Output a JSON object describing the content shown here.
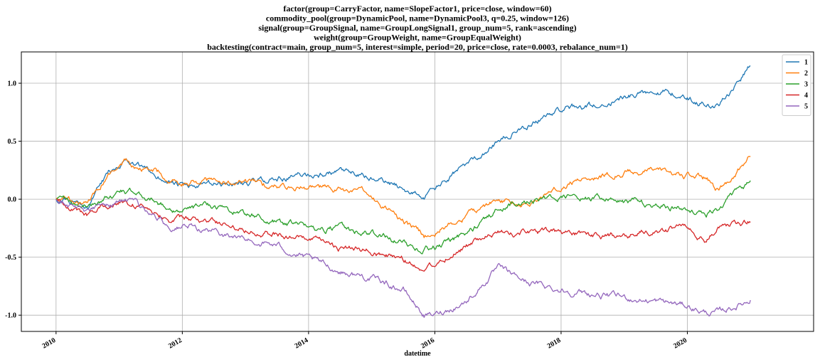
{
  "chart_data": {
    "type": "line",
    "title_lines": [
      "factor(group=CarryFactor, name=SlopeFactor1, price=close, window=60)",
      "commodity_pool(group=DynamicPool, name=DynamicPool3, q=0.25, window=126)",
      "signal(group=GroupSignal, name=GroupLongSignal1, group_num=5, rank=ascending)",
      "weight(group=GroupWeight, name=GroupEqualWeight)",
      "backtesting(contract=main, group_num=5, interest=simple, period=20, price=close, rate=0.0003, rebalance_num=1)"
    ],
    "xlabel": "datetime",
    "ylabel": "",
    "xlim": [
      2009.45,
      2022.0
    ],
    "ylim": [
      -1.14,
      1.27
    ],
    "x_ticks": [
      2010,
      2012,
      2014,
      2016,
      2018,
      2020
    ],
    "x_tick_labels": [
      "2010",
      "2012",
      "2014",
      "2016",
      "2018",
      "2020"
    ],
    "y_ticks": [
      -1.0,
      -0.5,
      0.0,
      0.5,
      1.0
    ],
    "y_tick_labels": [
      "-1.0",
      "-0.5",
      "0.0",
      "0.5",
      "1.0"
    ],
    "grid": true,
    "legend_position": "top-right",
    "x": [
      2010.0,
      2010.5,
      2010.83,
      2011.08,
      2011.5,
      2011.83,
      2012.0,
      2012.5,
      2013.0,
      2013.5,
      2014.0,
      2014.5,
      2015.0,
      2015.5,
      2015.83,
      2016.0,
      2016.5,
      2017.0,
      2017.5,
      2018.0,
      2018.5,
      2019.0,
      2019.5,
      2020.0,
      2020.3,
      2020.5,
      2021.0
    ],
    "series": [
      {
        "name": "1",
        "color": "#1f77b4",
        "values": [
          0.0,
          -0.05,
          0.22,
          0.35,
          0.22,
          0.15,
          0.1,
          0.12,
          0.14,
          0.18,
          0.21,
          0.23,
          0.18,
          0.1,
          0.02,
          0.08,
          0.3,
          0.5,
          0.65,
          0.78,
          0.8,
          0.88,
          0.95,
          0.88,
          0.82,
          0.8,
          1.15
        ]
      },
      {
        "name": "2",
        "color": "#ff7f0e",
        "values": [
          0.0,
          -0.03,
          0.2,
          0.3,
          0.25,
          0.18,
          0.15,
          0.16,
          0.13,
          0.12,
          0.1,
          0.08,
          0.03,
          -0.2,
          -0.32,
          -0.28,
          -0.15,
          0.0,
          -0.05,
          0.12,
          0.2,
          0.23,
          0.25,
          0.2,
          0.18,
          0.08,
          0.37
        ]
      },
      {
        "name": "3",
        "color": "#2ca02c",
        "values": [
          0.0,
          -0.06,
          0.02,
          0.08,
          0.0,
          -0.08,
          -0.1,
          -0.05,
          -0.12,
          -0.2,
          -0.25,
          -0.25,
          -0.3,
          -0.38,
          -0.43,
          -0.42,
          -0.3,
          -0.08,
          0.0,
          0.02,
          0.0,
          -0.02,
          -0.05,
          -0.08,
          -0.12,
          -0.08,
          0.16
        ]
      },
      {
        "name": "4",
        "color": "#d62728",
        "values": [
          0.0,
          -0.15,
          -0.05,
          -0.02,
          -0.08,
          -0.18,
          -0.18,
          -0.2,
          -0.25,
          -0.3,
          -0.35,
          -0.42,
          -0.45,
          -0.52,
          -0.6,
          -0.55,
          -0.4,
          -0.3,
          -0.28,
          -0.3,
          -0.32,
          -0.3,
          -0.28,
          -0.22,
          -0.35,
          -0.25,
          -0.2
        ]
      },
      {
        "name": "5",
        "color": "#9467bd",
        "values": [
          0.0,
          -0.1,
          -0.05,
          0.0,
          -0.12,
          -0.25,
          -0.23,
          -0.28,
          -0.35,
          -0.4,
          -0.52,
          -0.62,
          -0.68,
          -0.78,
          -1.0,
          -1.0,
          -0.88,
          -0.6,
          -0.72,
          -0.78,
          -0.82,
          -0.85,
          -0.88,
          -0.92,
          -0.98,
          -0.98,
          -0.87
        ]
      }
    ]
  }
}
